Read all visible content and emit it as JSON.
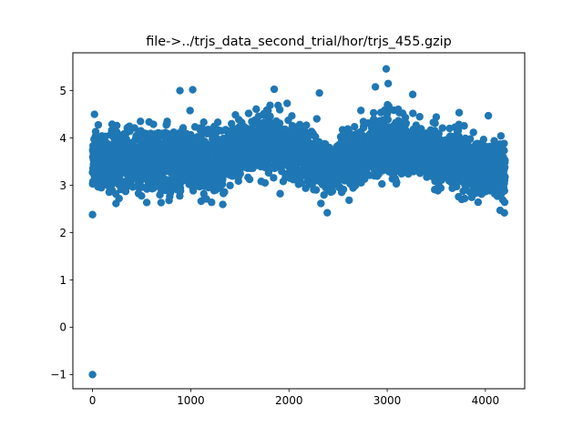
{
  "chart_data": {
    "type": "scatter",
    "title": "file->../trjs_data_second_trial/hor/trjs_455.gzip",
    "xlabel": "",
    "ylabel": "",
    "xlim": [
      -200,
      4400
    ],
    "ylim": [
      -1.3,
      5.8
    ],
    "x_ticks": [
      0,
      1000,
      2000,
      3000,
      4000
    ],
    "x_tick_labels": [
      "0",
      "1000",
      "2000",
      "3000",
      "4000"
    ],
    "y_ticks": [
      -1,
      0,
      1,
      2,
      3,
      4,
      5
    ],
    "y_tick_labels": [
      "−1",
      "0",
      "1",
      "2",
      "3",
      "4",
      "5"
    ],
    "grid": false,
    "marker_color": "#1f77b4",
    "n_points_approx": 4200,
    "x_range": [
      0,
      4200
    ],
    "band_profile": [
      {
        "x": 0,
        "mean": 3.45,
        "spread": 0.55
      },
      {
        "x": 200,
        "mean": 3.5,
        "spread": 0.6
      },
      {
        "x": 400,
        "mean": 3.55,
        "spread": 0.6
      },
      {
        "x": 600,
        "mean": 3.55,
        "spread": 0.6
      },
      {
        "x": 800,
        "mean": 3.55,
        "spread": 0.65
      },
      {
        "x": 1000,
        "mean": 3.5,
        "spread": 0.65
      },
      {
        "x": 1200,
        "mean": 3.5,
        "spread": 0.65
      },
      {
        "x": 1400,
        "mean": 3.65,
        "spread": 0.6
      },
      {
        "x": 1600,
        "mean": 3.8,
        "spread": 0.6
      },
      {
        "x": 1800,
        "mean": 3.85,
        "spread": 0.6
      },
      {
        "x": 2000,
        "mean": 3.8,
        "spread": 0.55
      },
      {
        "x": 2200,
        "mean": 3.65,
        "spread": 0.55
      },
      {
        "x": 2400,
        "mean": 3.3,
        "spread": 0.5
      },
      {
        "x": 2600,
        "mean": 3.5,
        "spread": 0.55
      },
      {
        "x": 2800,
        "mean": 3.75,
        "spread": 0.6
      },
      {
        "x": 3000,
        "mean": 3.85,
        "spread": 0.6
      },
      {
        "x": 3200,
        "mean": 3.8,
        "spread": 0.6
      },
      {
        "x": 3400,
        "mean": 3.7,
        "spread": 0.55
      },
      {
        "x": 3600,
        "mean": 3.55,
        "spread": 0.55
      },
      {
        "x": 3800,
        "mean": 3.45,
        "spread": 0.55
      },
      {
        "x": 4000,
        "mean": 3.4,
        "spread": 0.55
      },
      {
        "x": 4200,
        "mean": 3.35,
        "spread": 0.55
      }
    ],
    "notable_points": [
      {
        "x": 0,
        "y": -1.0
      },
      {
        "x": 0,
        "y": 2.38
      },
      {
        "x": 20,
        "y": 4.5
      },
      {
        "x": 890,
        "y": 5.0
      },
      {
        "x": 1020,
        "y": 5.02
      },
      {
        "x": 1850,
        "y": 5.03
      },
      {
        "x": 2990,
        "y": 5.46
      },
      {
        "x": 3010,
        "y": 5.15
      },
      {
        "x": 2880,
        "y": 5.08
      },
      {
        "x": 2310,
        "y": 4.95
      },
      {
        "x": 2390,
        "y": 2.42
      },
      {
        "x": 4150,
        "y": 2.47
      },
      {
        "x": 4030,
        "y": 4.47
      },
      {
        "x": 3260,
        "y": 4.92
      }
    ]
  }
}
